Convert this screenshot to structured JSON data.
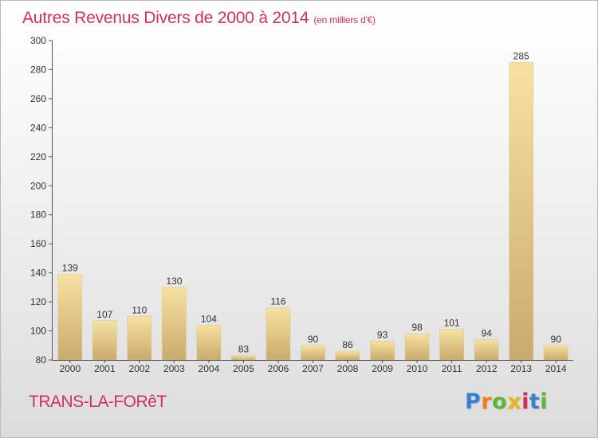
{
  "header": {
    "title": "Autres Revenus Divers de 2000 à 2014",
    "unit": "(en milliers d'€)"
  },
  "footer": {
    "commune": "TRANS-LA-FORêT",
    "logo_text": "Proxiti",
    "logo_colors": [
      "#3a7fd6",
      "#f07d1e",
      "#5cb533",
      "#e8b520",
      "#d2305a",
      "#3a7fd6",
      "#5cb533"
    ]
  },
  "colors": {
    "title": "#d2305a",
    "bar_light": "#f5dc96",
    "bar_dark": "#c8a868",
    "axis": "#555555"
  },
  "chart_data": {
    "type": "bar",
    "title": "Autres Revenus Divers de 2000 à 2014",
    "xlabel": "",
    "ylabel": "",
    "categories": [
      "2000",
      "2001",
      "2002",
      "2003",
      "2004",
      "2005",
      "2006",
      "2007",
      "2008",
      "2009",
      "2010",
      "2011",
      "2012",
      "2013",
      "2014"
    ],
    "values": [
      139,
      107,
      110,
      130,
      104,
      83,
      116,
      90,
      86,
      93,
      98,
      101,
      94,
      285,
      90
    ],
    "ylim": [
      80,
      300
    ],
    "yticks": [
      80,
      100,
      120,
      140,
      160,
      180,
      200,
      220,
      240,
      260,
      280,
      300
    ],
    "grid": false
  }
}
